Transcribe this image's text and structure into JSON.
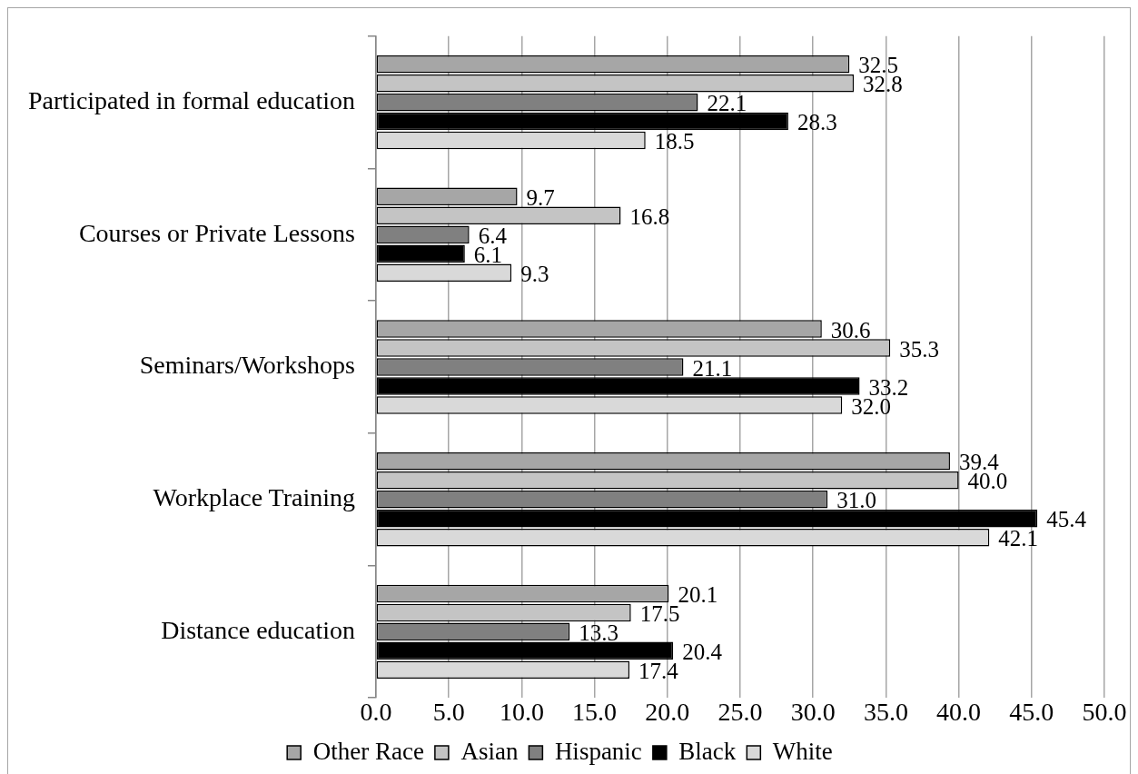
{
  "chart_data": {
    "type": "bar",
    "orientation": "horizontal",
    "categories": [
      "Participated in formal education",
      "Courses or Private Lessons",
      "Seminars/Workshops",
      "Workplace Training",
      "Distance education"
    ],
    "series": [
      {
        "name": "Other Race",
        "color": "#a6a6a6",
        "values": [
          32.5,
          9.7,
          30.6,
          39.4,
          20.1
        ],
        "value_labels": [
          "32.5",
          "9.7",
          "30.6",
          "39.4",
          "20.1"
        ]
      },
      {
        "name": "Asian",
        "color": "#c4c4c4",
        "values": [
          32.8,
          16.8,
          35.3,
          40.0,
          17.5
        ],
        "value_labels": [
          "32.8",
          "16.8",
          "35.3",
          "40.0",
          "17.5"
        ]
      },
      {
        "name": "Hispanic",
        "color": "#808080",
        "values": [
          22.1,
          6.4,
          21.1,
          31.0,
          13.3
        ],
        "value_labels": [
          "22.1",
          "6.4",
          "21.1",
          "31.0",
          "13.3"
        ]
      },
      {
        "name": "Black",
        "color": "#000000",
        "values": [
          28.3,
          6.1,
          33.2,
          45.4,
          20.4
        ],
        "value_labels": [
          "28.3",
          "6.1",
          "33.2",
          "45.4",
          "20.4"
        ]
      },
      {
        "name": "White",
        "color": "#d9d9d9",
        "values": [
          18.5,
          9.3,
          32.0,
          42.1,
          17.4
        ],
        "value_labels": [
          "18.5",
          "9.3",
          "32.0",
          "42.1",
          "17.4"
        ]
      }
    ],
    "xlim": [
      0,
      50
    ],
    "xticks": [
      {
        "value": 0,
        "label": "0.0"
      },
      {
        "value": 5,
        "label": "5.0"
      },
      {
        "value": 10,
        "label": "10.0"
      },
      {
        "value": 15,
        "label": "15.0"
      },
      {
        "value": 20,
        "label": "20.0"
      },
      {
        "value": 25,
        "label": "25.0"
      },
      {
        "value": 30,
        "label": "30.0"
      },
      {
        "value": 35,
        "label": "35.0"
      },
      {
        "value": 40,
        "label": "40.0"
      },
      {
        "value": 45,
        "label": "45.0"
      },
      {
        "value": 50,
        "label": "50.0"
      }
    ],
    "grid": "x",
    "legend": "bottom"
  }
}
